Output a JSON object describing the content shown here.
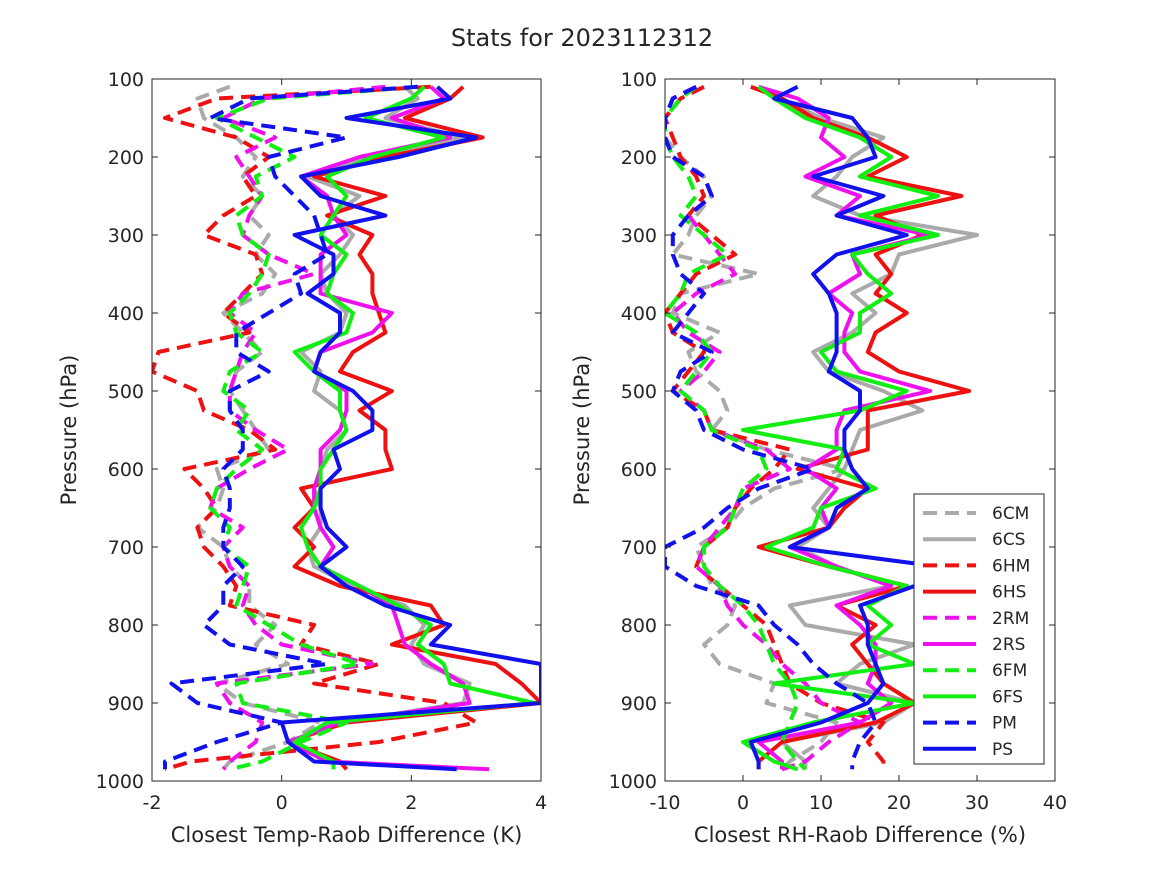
{
  "title": "Stats for 2023112312",
  "colors": {
    "gray": "#aaaaaa",
    "red": "#ee1111",
    "magenta": "#ee11ee",
    "green": "#11ee11",
    "blue": "#1111ee"
  },
  "legend": {
    "placement": "bottom-right of right panel",
    "entries": [
      {
        "label": "6CM",
        "color": "#aaaaaa",
        "dash": true
      },
      {
        "label": "6CS",
        "color": "#aaaaaa",
        "dash": false
      },
      {
        "label": "6HM",
        "color": "#ee1111",
        "dash": true
      },
      {
        "label": "6HS",
        "color": "#ee1111",
        "dash": false
      },
      {
        "label": "2RM",
        "color": "#ee11ee",
        "dash": true
      },
      {
        "label": "2RS",
        "color": "#ee11ee",
        "dash": false
      },
      {
        "label": "6FM",
        "color": "#11ee11",
        "dash": true
      },
      {
        "label": "6FS",
        "color": "#11ee11",
        "dash": false
      },
      {
        "label": "PM",
        "color": "#1111ee",
        "dash": true
      },
      {
        "label": "PS",
        "color": "#1111ee",
        "dash": false
      }
    ]
  },
  "chart_data": [
    {
      "type": "line",
      "xlabel": "Closest Temp-Raob Difference (K)",
      "ylabel": "Pressure (hPa)",
      "xlim": [
        -2,
        4
      ],
      "ylim": [
        1000,
        100
      ],
      "xticks": [
        "-2",
        "0",
        "2",
        "4"
      ],
      "yticks": [
        "100",
        "200",
        "300",
        "400",
        "500",
        "600",
        "700",
        "800",
        "900",
        "1000"
      ],
      "grid": false,
      "pressure": [
        110,
        125,
        150,
        175,
        200,
        225,
        250,
        275,
        300,
        325,
        350,
        375,
        400,
        425,
        450,
        475,
        500,
        525,
        550,
        575,
        600,
        625,
        650,
        675,
        700,
        725,
        750,
        775,
        800,
        825,
        850,
        875,
        900,
        925,
        950,
        975,
        985
      ],
      "series": [
        {
          "name": "6CM",
          "values": [
            -0.8,
            -1.3,
            -1.2,
            -0.7,
            -0.4,
            -0.6,
            -0.3,
            -0.5,
            -0.2,
            -0.4,
            -0.1,
            -0.3,
            -0.9,
            -0.6,
            -0.3,
            -0.7,
            -0.8,
            -0.6,
            -0.4,
            -0.2,
            -1.0,
            -0.9,
            -1.0,
            -1.3,
            -0.9,
            -0.8,
            -0.5,
            -0.5,
            -0.1,
            -0.4,
            0.1,
            -1.0,
            -0.6,
            0.6,
            0.1,
            -0.8,
            -0.9
          ]
        },
        {
          "name": "6CS",
          "values": [
            1.9,
            2.1,
            1.6,
            2.8,
            1.3,
            0.4,
            1.2,
            0.8,
            1.1,
            0.9,
            0.6,
            0.7,
            1.0,
            0.9,
            0.3,
            0.6,
            0.5,
            0.9,
            1.0,
            0.7,
            0.6,
            0.5,
            0.6,
            0.6,
            0.4,
            0.5,
            1.1,
            1.9,
            2.2,
            2.0,
            2.2,
            2.9,
            2.8,
            0.9,
            0.1,
            0.8,
            0.8
          ]
        },
        {
          "name": "6HM",
          "values": [
            2.3,
            -1.0,
            -1.8,
            -0.7,
            -0.2,
            -0.6,
            -0.4,
            -0.9,
            -1.2,
            -0.4,
            -0.3,
            -0.6,
            -0.9,
            -0.5,
            -1.9,
            -2.0,
            -1.3,
            -1.2,
            -0.5,
            -0.1,
            -1.5,
            -1.2,
            -1.0,
            -1.3,
            -1.2,
            -0.9,
            -0.7,
            -0.8,
            0.5,
            0.3,
            1.5,
            0.5,
            2.5,
            3.0,
            1.5,
            -1.4,
            -1.8
          ]
        },
        {
          "name": "6HS",
          "values": [
            2.8,
            2.6,
            1.9,
            3.1,
            1.6,
            0.5,
            1.6,
            0.7,
            1.4,
            1.2,
            1.4,
            1.4,
            1.5,
            1.6,
            1.1,
            0.9,
            1.7,
            1.2,
            1.6,
            1.6,
            1.7,
            0.3,
            0.5,
            0.2,
            0.5,
            0.2,
            0.9,
            2.3,
            2.5,
            1.7,
            3.3,
            3.7,
            4.0,
            1.0,
            0.1,
            0.9,
            1.0
          ]
        },
        {
          "name": "2RM",
          "values": [
            1.6,
            -0.3,
            -0.9,
            -0.1,
            -0.7,
            -0.5,
            -0.3,
            -0.5,
            -0.6,
            -0.2,
            0.5,
            -0.6,
            -0.8,
            -0.4,
            -0.6,
            -0.7,
            -0.8,
            -0.8,
            -0.4,
            0.1,
            -0.5,
            -1.0,
            -1.1,
            -0.6,
            -0.9,
            -0.8,
            -0.5,
            -0.6,
            -0.4,
            0.0,
            1.4,
            -1.0,
            -0.8,
            -0.3,
            -0.4,
            -0.8,
            -0.9
          ]
        },
        {
          "name": "2RS",
          "values": [
            2.3,
            2.5,
            1.7,
            2.6,
            1.2,
            0.3,
            0.7,
            0.8,
            1.0,
            0.6,
            0.6,
            0.6,
            1.7,
            1.4,
            0.6,
            0.5,
            1.0,
            1.0,
            0.9,
            0.6,
            0.6,
            0.5,
            0.5,
            0.6,
            0.8,
            0.6,
            1.2,
            1.7,
            1.8,
            1.9,
            2.3,
            2.8,
            2.9,
            0.9,
            0.1,
            0.7,
            3.2
          ]
        },
        {
          "name": "6FM",
          "values": [
            2.1,
            -0.2,
            -1.0,
            -0.4,
            0.2,
            -0.4,
            -0.3,
            -0.7,
            -0.6,
            -0.2,
            -0.3,
            -0.5,
            -0.8,
            -0.7,
            -0.3,
            -0.8,
            -0.9,
            -0.5,
            -0.7,
            -0.3,
            -0.7,
            -1.0,
            -1.1,
            -0.8,
            -0.9,
            -0.5,
            -0.6,
            -0.7,
            -0.2,
            0.3,
            1.2,
            -0.7,
            -0.6,
            1.0,
            0.3,
            -0.3,
            -0.8
          ]
        },
        {
          "name": "6FS",
          "values": [
            2.2,
            2.0,
            1.3,
            2.5,
            1.4,
            0.7,
            1.0,
            0.8,
            0.6,
            1.0,
            0.8,
            0.7,
            1.1,
            1.0,
            0.2,
            0.5,
            0.9,
            0.9,
            1.0,
            0.8,
            0.6,
            0.6,
            0.5,
            0.3,
            0.4,
            0.6,
            1.2,
            1.8,
            2.3,
            2.1,
            2.5,
            2.6,
            3.9,
            0.7,
            0.2,
            0.8,
            0.8
          ]
        },
        {
          "name": "PM",
          "values": [
            2.1,
            -0.5,
            -1.1,
            1.0,
            -0.2,
            -0.1,
            0.2,
            0.5,
            0.6,
            0.7,
            0.2,
            0.3,
            -0.2,
            -0.7,
            -0.7,
            -0.2,
            -0.8,
            -0.8,
            -0.6,
            -0.6,
            -0.9,
            -0.8,
            -0.8,
            -0.9,
            -0.9,
            -0.6,
            -0.9,
            -0.9,
            -1.2,
            -0.8,
            0.7,
            -1.7,
            -1.3,
            0.0,
            -1.0,
            -1.8,
            -1.8
          ]
        },
        {
          "name": "PS",
          "values": [
            2.4,
            2.6,
            1.0,
            3.0,
            1.8,
            0.3,
            0.6,
            1.6,
            0.2,
            0.8,
            0.8,
            0.4,
            0.9,
            0.9,
            0.6,
            0.5,
            1.1,
            1.4,
            1.4,
            0.8,
            0.9,
            0.6,
            0.6,
            0.7,
            1.0,
            0.6,
            1.0,
            1.6,
            2.6,
            2.3,
            4.0,
            4.0,
            4.0,
            0.0,
            0.1,
            0.5,
            2.7
          ]
        }
      ]
    },
    {
      "type": "line",
      "xlabel": "Closest RH-Raob Difference (%)",
      "ylabel": "Pressure (hPa)",
      "xlim": [
        -10,
        40
      ],
      "ylim": [
        1000,
        100
      ],
      "xticks": [
        "-10",
        "0",
        "10",
        "20",
        "30",
        "40"
      ],
      "yticks": [
        "100",
        "200",
        "300",
        "400",
        "500",
        "600",
        "700",
        "800",
        "900",
        "1000"
      ],
      "grid": false,
      "pressure": [
        110,
        125,
        150,
        175,
        200,
        225,
        250,
        275,
        300,
        325,
        350,
        375,
        400,
        425,
        450,
        475,
        500,
        525,
        550,
        575,
        600,
        625,
        650,
        675,
        700,
        725,
        750,
        775,
        800,
        825,
        850,
        875,
        900,
        925,
        950,
        975,
        985
      ],
      "series": [
        {
          "name": "6CM",
          "values": [
            -6,
            -9,
            -10,
            -10,
            -8,
            -5,
            -4,
            -6,
            -7,
            -9,
            2,
            -8,
            -9,
            -3,
            -7,
            -6,
            -3,
            -2,
            -4,
            3,
            13,
            4,
            0,
            -2,
            -6,
            -5,
            -4,
            -1,
            -2,
            -5,
            -3,
            4,
            3,
            12,
            10,
            6,
            5
          ]
        },
        {
          "name": "6CS",
          "values": [
            2,
            5,
            10,
            18,
            14,
            12,
            9,
            15,
            30,
            20,
            19,
            14,
            17,
            14,
            9,
            11,
            18,
            23,
            15,
            14,
            13,
            11,
            9,
            11,
            7,
            12,
            19,
            6,
            8,
            22,
            15,
            12,
            22,
            18,
            5,
            8,
            8
          ]
        },
        {
          "name": "6HM",
          "values": [
            -5,
            -8,
            -10,
            -9,
            -8,
            -6,
            -5,
            -7,
            -4,
            -1,
            -6,
            -8,
            -10,
            -9,
            -5,
            -7,
            -9,
            -5,
            -4,
            6,
            4,
            1,
            -1,
            -2,
            -5,
            -6,
            -3,
            0,
            3,
            4,
            5,
            6,
            10,
            18,
            16,
            18,
            18
          ]
        },
        {
          "name": "6HS",
          "values": [
            1,
            5,
            9,
            16,
            21,
            16,
            28,
            17,
            23,
            17,
            19,
            17,
            21,
            17,
            16,
            20,
            29,
            16,
            16,
            16,
            7,
            16,
            13,
            11,
            2,
            11,
            21,
            12,
            17,
            14,
            16,
            18,
            22,
            17,
            5,
            2,
            2
          ]
        },
        {
          "name": "2RM",
          "values": [
            -6,
            -9,
            -10,
            -10,
            -9,
            -5,
            -4,
            -7,
            -5,
            -3,
            -1,
            -6,
            -9,
            -7,
            -3,
            -5,
            -8,
            -5,
            -4,
            3,
            6,
            0,
            -1,
            -3,
            -5,
            -6,
            -3,
            -2,
            0,
            3,
            5,
            8,
            10,
            15,
            11,
            8,
            5
          ]
        },
        {
          "name": "2RS",
          "values": [
            2,
            7,
            11,
            10,
            13,
            8,
            15,
            12,
            24,
            14,
            15,
            11,
            14,
            13,
            13,
            15,
            24,
            13,
            12,
            12,
            8,
            12,
            10,
            11,
            6,
            12,
            19,
            12,
            15,
            17,
            17,
            16,
            19,
            15,
            2,
            5,
            5
          ]
        },
        {
          "name": "6FM",
          "values": [
            -6,
            -8,
            -10,
            -10,
            -9,
            -7,
            -6,
            -8,
            -5,
            -2,
            -7,
            -8,
            -10,
            -6,
            -4,
            -6,
            -8,
            -5,
            -4,
            2,
            3,
            0,
            -1,
            -2,
            -5,
            -5,
            -3,
            0,
            2,
            3,
            4,
            6,
            7,
            6,
            5,
            7,
            8
          ]
        },
        {
          "name": "6FS",
          "values": [
            2,
            4,
            8,
            15,
            19,
            15,
            25,
            15,
            25,
            14,
            16,
            19,
            15,
            15,
            10,
            12,
            21,
            15,
            0,
            13,
            12,
            17,
            10,
            9,
            3,
            11,
            21,
            16,
            19,
            16,
            22,
            4,
            22,
            9,
            0,
            4,
            7
          ]
        },
        {
          "name": "PM",
          "values": [
            -6,
            -9,
            -10,
            -10,
            -9,
            -5,
            -4,
            -7,
            -9,
            -9,
            -8,
            -5,
            -7,
            -9,
            -4,
            -8,
            -9,
            -6,
            -5,
            0,
            9,
            2,
            -2,
            -5,
            -10,
            -10,
            -6,
            2,
            4,
            7,
            9,
            12,
            16,
            17,
            15,
            14,
            14
          ]
        },
        {
          "name": "PS",
          "values": [
            7,
            4,
            14,
            16,
            17,
            9,
            18,
            12,
            21,
            12,
            9,
            11,
            12,
            12,
            12,
            11,
            15,
            15,
            13,
            13,
            14,
            16,
            12,
            11,
            6,
            25,
            22,
            15,
            16,
            16,
            17,
            18,
            16,
            10,
            1,
            2,
            2
          ]
        }
      ]
    }
  ]
}
